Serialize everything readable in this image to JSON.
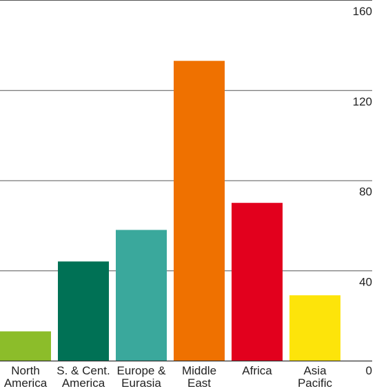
{
  "chart_data": {
    "type": "bar",
    "title": "",
    "xlabel": "",
    "ylabel": "",
    "ylim": [
      0,
      160
    ],
    "y_ticks": [
      {
        "value": 0,
        "label": "0"
      },
      {
        "value": 40,
        "label": "40"
      },
      {
        "value": 80,
        "label": "80"
      },
      {
        "value": 120,
        "label": "120"
      },
      {
        "value": 160,
        "label": "160"
      }
    ],
    "y_axis_position": "right",
    "grid": true,
    "legend": "none",
    "categories": [
      {
        "lines": [
          "North",
          "America"
        ]
      },
      {
        "lines": [
          "S. & Cent.",
          "America"
        ]
      },
      {
        "lines": [
          "Europe &",
          "Eurasia"
        ]
      },
      {
        "lines": [
          "Middle",
          "East"
        ]
      },
      {
        "lines": [
          "Africa"
        ]
      },
      {
        "lines": [
          "Asia",
          "Pacific"
        ]
      }
    ],
    "values": [
      13,
      44,
      58,
      133,
      70,
      29
    ],
    "colors": [
      "#8cbd2a",
      "#007155",
      "#3aa89c",
      "#ef7100",
      "#e2001d",
      "#fde40a"
    ]
  }
}
